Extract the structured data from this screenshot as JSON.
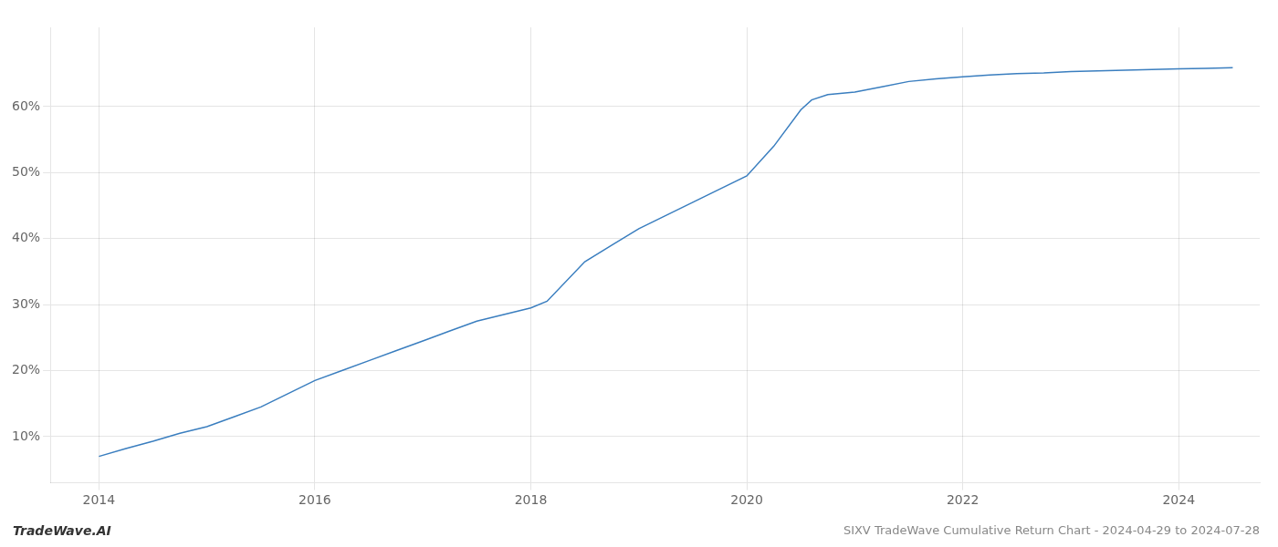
{
  "chart_data": {
    "type": "line",
    "title": "SIXV TradeWave Cumulative Return Chart - 2024-04-29 to 2024-07-28",
    "annotations": [
      "TradeWave.AI"
    ],
    "color": "#3a7ebf",
    "x": [
      2014.0,
      2014.25,
      2014.5,
      2014.75,
      2015.0,
      2015.25,
      2015.5,
      2015.75,
      2016.0,
      2016.25,
      2016.5,
      2016.75,
      2017.0,
      2017.25,
      2017.5,
      2017.75,
      2018.0,
      2018.15,
      2018.5,
      2018.75,
      2019.0,
      2019.25,
      2019.5,
      2019.75,
      2020.0,
      2020.25,
      2020.5,
      2020.6,
      2020.75,
      2021.0,
      2021.25,
      2021.5,
      2021.75,
      2022.0,
      2022.25,
      2022.5,
      2022.75,
      2023.0,
      2023.25,
      2023.5,
      2023.75,
      2024.0,
      2024.25,
      2024.5
    ],
    "values": [
      7.0,
      8.2,
      9.3,
      10.5,
      11.5,
      13.0,
      14.5,
      16.5,
      18.5,
      20.0,
      21.5,
      23.0,
      24.5,
      26.0,
      27.5,
      28.5,
      29.5,
      30.5,
      36.5,
      39.0,
      41.5,
      43.5,
      45.5,
      47.5,
      49.5,
      54.0,
      59.5,
      61.0,
      61.8,
      62.2,
      63.0,
      63.8,
      64.2,
      64.5,
      64.8,
      65.0,
      65.1,
      65.3,
      65.4,
      65.5,
      65.6,
      65.7,
      65.8,
      65.9
    ],
    "xlim": [
      2013.55,
      2024.75
    ],
    "xticks": [
      2014,
      2016,
      2018,
      2020,
      2022,
      2024
    ],
    "ylim": [
      3,
      72
    ],
    "yticks": [
      {
        "value": 10,
        "label": "10%"
      },
      {
        "value": 20,
        "label": "20%"
      },
      {
        "value": 30,
        "label": "30%"
      },
      {
        "value": 40,
        "label": "40%"
      },
      {
        "value": 50,
        "label": "50%"
      },
      {
        "value": 60,
        "label": "60%"
      }
    ],
    "grid": true
  }
}
